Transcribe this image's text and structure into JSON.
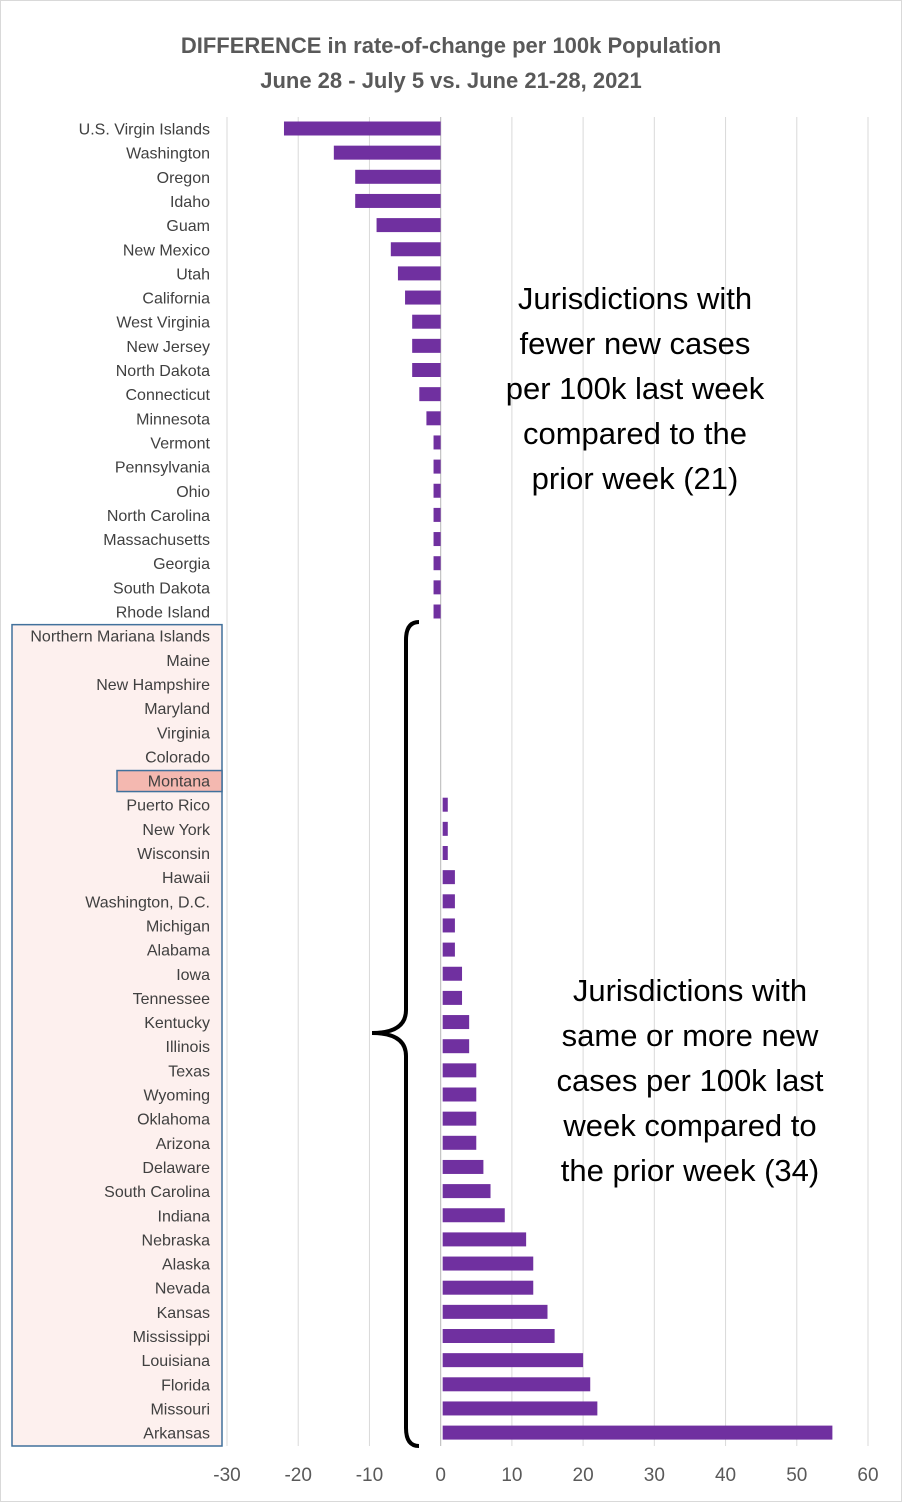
{
  "title_line1": "DIFFERENCE in rate-of-change per 100k Population",
  "title_line2": "June 28 - July 5 vs. June 21-28, 2021",
  "annotations": {
    "fewer": [
      "Jurisdictions with",
      "fewer new cases",
      "per 100k last week",
      "compared to the",
      "prior week (21)"
    ],
    "more": [
      "Jurisdictions with",
      "same or more new",
      "cases per 100k last",
      "week compared to",
      "the prior week (34)"
    ]
  },
  "colors": {
    "bar": "#7030a0",
    "grid": "#d9d9d9",
    "axis_text": "#595959",
    "box_border": "#41719c",
    "box_fill": "#fdf0ee",
    "highlight_fill": "#f4b8b0"
  },
  "chart_data": {
    "type": "bar",
    "orientation": "horizontal",
    "title": "DIFFERENCE in rate-of-change per 100k Population June 28 - July 5 vs. June 21-28, 2021",
    "xlim": [
      -30,
      60
    ],
    "xticks": [
      -30,
      -20,
      -10,
      0,
      10,
      20,
      30,
      40,
      50,
      60
    ],
    "highlighted_category": "Montana",
    "categories": [
      "U.S. Virgin Islands",
      "Washington",
      "Oregon",
      "Idaho",
      "Guam",
      "New Mexico",
      "Utah",
      "California",
      "West Virginia",
      "New Jersey",
      "North Dakota",
      "Connecticut",
      "Minnesota",
      "Vermont",
      "Pennsylvania",
      "Ohio",
      "North Carolina",
      "Massachusetts",
      "Georgia",
      "South Dakota",
      "Rhode Island",
      "Northern Mariana Islands",
      "Maine",
      "New Hampshire",
      "Maryland",
      "Virginia",
      "Colorado",
      "Montana",
      "Puerto Rico",
      "New York",
      "Wisconsin",
      "Hawaii",
      "Washington, D.C.",
      "Michigan",
      "Alabama",
      "Iowa",
      "Tennessee",
      "Kentucky",
      "Illinois",
      "Texas",
      "Wyoming",
      "Oklahoma",
      "Arizona",
      "Delaware",
      "South Carolina",
      "Indiana",
      "Nebraska",
      "Alaska",
      "Nevada",
      "Kansas",
      "Mississippi",
      "Louisiana",
      "Florida",
      "Missouri",
      "Arkansas"
    ],
    "values": [
      -22,
      -15,
      -12,
      -12,
      -9,
      -7,
      -6,
      -5,
      -4,
      -4,
      -4,
      -3,
      -2,
      -1,
      -1,
      -1,
      -1,
      -1,
      -1,
      -1,
      -1,
      0,
      0,
      0,
      0,
      0,
      0,
      0,
      1,
      1,
      1,
      2,
      2,
      2,
      2,
      3,
      3,
      4,
      4,
      5,
      5,
      5,
      5,
      6,
      7,
      9,
      12,
      13,
      13,
      15,
      16,
      20,
      21,
      22,
      55
    ]
  }
}
